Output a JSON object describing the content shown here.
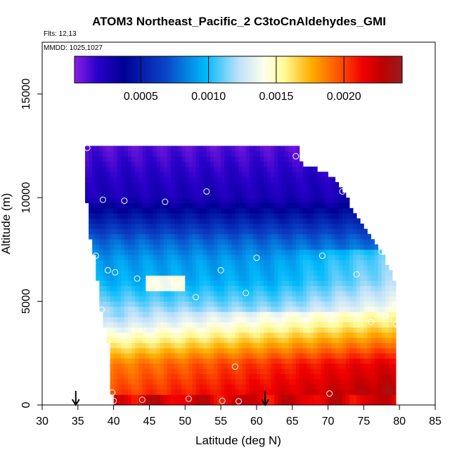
{
  "chart_data": {
    "type": "heatmap",
    "title": "ATOM3 Northeast_Pacific_2 C3toCnAldehydes_GMI",
    "flights_note": "Flts: 12,13",
    "dates_note": "MMDD: 1025,1027",
    "xlabel": "Latitude (deg N)",
    "ylabel": "Altitude (m)",
    "xlim": [
      30,
      85
    ],
    "ylim": [
      0,
      17500
    ],
    "x_ticks": [
      "30",
      "35",
      "40",
      "45",
      "50",
      "55",
      "60",
      "65",
      "70",
      "75",
      "80",
      "85"
    ],
    "y_ticks": [
      "0",
      "5000",
      "10000",
      "15000"
    ],
    "colorbar": {
      "range": [
        1e-05,
        0.00243
      ],
      "ticks": [
        "0.0005",
        "0.0010",
        "0.0015",
        "0.0020"
      ],
      "tick_values": [
        0.0005,
        0.001,
        0.0015,
        0.002
      ]
    },
    "grid": false,
    "curtain": {
      "lat_start": 36.5,
      "lat_step": 0.5,
      "alt_step": 250,
      "top_edge": [
        [
          36,
          12500
        ],
        [
          40,
          12500
        ],
        [
          65.5,
          12500
        ],
        [
          66,
          11700
        ],
        [
          70,
          11100
        ],
        [
          72,
          10300
        ],
        [
          73,
          9600
        ],
        [
          74.5,
          8800
        ],
        [
          76,
          8000
        ],
        [
          77.5,
          7300
        ],
        [
          79,
          6000
        ],
        [
          79.5,
          4000
        ],
        [
          79.5,
          300
        ]
      ],
      "left_edge": [
        [
          36,
          12500
        ],
        [
          36.5,
          9800
        ],
        [
          37,
          8000
        ],
        [
          37.5,
          7300
        ],
        [
          38,
          6000
        ],
        [
          38.5,
          4500
        ],
        [
          39.5,
          3000
        ],
        [
          40,
          600
        ],
        [
          40,
          0
        ]
      ],
      "gradient_stops": [
        {
          "alt": 0,
          "value": 0.0021
        },
        {
          "alt": 1000,
          "value": 0.002
        },
        {
          "alt": 2000,
          "value": 0.0019
        },
        {
          "alt": 3000,
          "value": 0.0016
        },
        {
          "alt": 4000,
          "value": 0.0013
        },
        {
          "alt": 5000,
          "value": 0.0011
        },
        {
          "alt": 6000,
          "value": 0.00095
        },
        {
          "alt": 7000,
          "value": 0.0009
        },
        {
          "alt": 8000,
          "value": 0.00075
        },
        {
          "alt": 9000,
          "value": 0.0005
        },
        {
          "alt": 10000,
          "value": 0.00025
        },
        {
          "alt": 11000,
          "value": 0.0002
        },
        {
          "alt": 12500,
          "value": 0.0001
        }
      ]
    },
    "sample_points": [
      {
        "lat": 36.3,
        "alt": 12400
      },
      {
        "lat": 65.5,
        "alt": 12000
      },
      {
        "lat": 72,
        "alt": 10300
      },
      {
        "lat": 53,
        "alt": 10300
      },
      {
        "lat": 38.5,
        "alt": 9900
      },
      {
        "lat": 41.5,
        "alt": 9850
      },
      {
        "lat": 47.2,
        "alt": 9800
      },
      {
        "lat": 37.5,
        "alt": 7200
      },
      {
        "lat": 60,
        "alt": 7100
      },
      {
        "lat": 69.2,
        "alt": 7200
      },
      {
        "lat": 77.5,
        "alt": 7400
      },
      {
        "lat": 39.2,
        "alt": 6500
      },
      {
        "lat": 40.2,
        "alt": 6400
      },
      {
        "lat": 55,
        "alt": 6500
      },
      {
        "lat": 43.3,
        "alt": 6100
      },
      {
        "lat": 74,
        "alt": 6300
      },
      {
        "lat": 45.5,
        "alt": 5900
      },
      {
        "lat": 49.5,
        "alt": 5800
      },
      {
        "lat": 58.5,
        "alt": 5400
      },
      {
        "lat": 51.5,
        "alt": 5200
      },
      {
        "lat": 38.3,
        "alt": 4600
      },
      {
        "lat": 78,
        "alt": 4300
      },
      {
        "lat": 76,
        "alt": 4000
      },
      {
        "lat": 79.5,
        "alt": 3900
      },
      {
        "lat": 57,
        "alt": 1850
      },
      {
        "lat": 39.8,
        "alt": 600
      },
      {
        "lat": 70.2,
        "alt": 550
      },
      {
        "lat": 40,
        "alt": 200
      },
      {
        "lat": 44,
        "alt": 250
      },
      {
        "lat": 50.5,
        "alt": 300
      },
      {
        "lat": 55.2,
        "alt": 200
      },
      {
        "lat": 57.5,
        "alt": 180
      }
    ],
    "arrows": [
      {
        "lat": 34.7
      },
      {
        "lat": 61.2
      }
    ]
  },
  "colors": {
    "background": "#ffffff",
    "axis": "#000000",
    "point_stroke": "#ffffff"
  }
}
